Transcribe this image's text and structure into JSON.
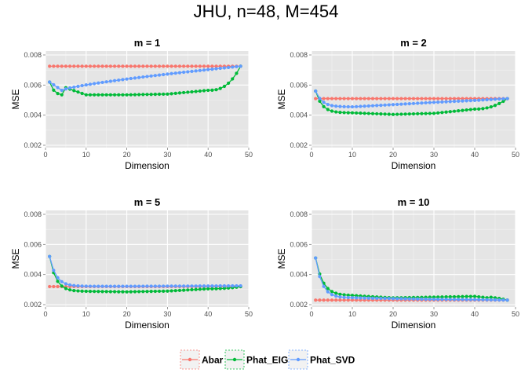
{
  "title": "JHU, n=48, M=454",
  "colors": {
    "Abar": "#F8766D",
    "Phat_EIG": "#00BA38",
    "Phat_SVD": "#619CFF",
    "panel_bg": "#e5e5e5",
    "grid": "#ffffff"
  },
  "legend": {
    "position": "bottom",
    "items": [
      "Abar",
      "Phat_EIG",
      "Phat_SVD"
    ]
  },
  "chart_data": [
    {
      "type": "line",
      "title": "m = 1",
      "xlabel": "Dimension",
      "ylabel": "MSE",
      "xlim": [
        0,
        50
      ],
      "ylim": [
        0.002,
        0.008
      ],
      "xticks": [
        "0",
        "10",
        "20",
        "30",
        "40",
        "50"
      ],
      "yticks": [
        "0.002",
        "0.004",
        "0.006",
        "0.008"
      ],
      "grid": true,
      "x": [
        1,
        10,
        20,
        30,
        40,
        48
      ],
      "series": [
        {
          "name": "Abar",
          "shape": "constant",
          "values": [
            0.00725,
            0.00725,
            0.00725,
            0.00725,
            0.00725,
            0.00725
          ]
        },
        {
          "name": "Phat_EIG",
          "shape": "eig1",
          "values": [
            0.0062,
            0.00535,
            0.00535,
            0.0054,
            0.00565,
            0.00725
          ]
        },
        {
          "name": "Phat_SVD",
          "shape": "svd1",
          "values": [
            0.0062,
            0.006,
            0.00645,
            0.00685,
            0.0071,
            0.00725
          ]
        }
      ]
    },
    {
      "type": "line",
      "title": "m = 2",
      "xlabel": "Dimension",
      "ylabel": "MSE",
      "xlim": [
        0,
        50
      ],
      "ylim": [
        0.002,
        0.008
      ],
      "xticks": [
        "0",
        "10",
        "20",
        "30",
        "40",
        "50"
      ],
      "yticks": [
        "0.002",
        "0.004",
        "0.006",
        "0.008"
      ],
      "grid": true,
      "x": [
        1,
        10,
        20,
        30,
        40,
        48
      ],
      "series": [
        {
          "name": "Abar",
          "shape": "constant",
          "values": [
            0.0051,
            0.0051,
            0.0051,
            0.0051,
            0.0051,
            0.0051
          ]
        },
        {
          "name": "Phat_EIG",
          "shape": "eig",
          "values": [
            0.0056,
            0.00415,
            0.00405,
            0.00412,
            0.0044,
            0.0051
          ]
        },
        {
          "name": "Phat_SVD",
          "shape": "svd",
          "values": [
            0.0056,
            0.00455,
            0.0047,
            0.00485,
            0.00498,
            0.0051
          ]
        }
      ]
    },
    {
      "type": "line",
      "title": "m = 5",
      "xlabel": "Dimension",
      "ylabel": "MSE",
      "xlim": [
        0,
        50
      ],
      "ylim": [
        0.002,
        0.008
      ],
      "xticks": [
        "0",
        "10",
        "20",
        "30",
        "40",
        "50"
      ],
      "yticks": [
        "0.002",
        "0.004",
        "0.006",
        "0.008"
      ],
      "grid": true,
      "x": [
        1,
        10,
        20,
        30,
        40,
        48
      ],
      "series": [
        {
          "name": "Abar",
          "shape": "constant",
          "values": [
            0.0032,
            0.0032,
            0.0032,
            0.0032,
            0.0032,
            0.0032
          ]
        },
        {
          "name": "Phat_EIG",
          "shape": "eig",
          "values": [
            0.0052,
            0.00288,
            0.00285,
            0.0029,
            0.00305,
            0.0032
          ]
        },
        {
          "name": "Phat_SVD",
          "shape": "svd",
          "values": [
            0.0052,
            0.00322,
            0.00322,
            0.00323,
            0.00324,
            0.00325
          ]
        }
      ]
    },
    {
      "type": "line",
      "title": "m = 10",
      "xlabel": "Dimension",
      "ylabel": "MSE",
      "xlim": [
        0,
        50
      ],
      "ylim": [
        0.002,
        0.008
      ],
      "xticks": [
        "0",
        "10",
        "20",
        "30",
        "40",
        "50"
      ],
      "yticks": [
        "0.002",
        "0.004",
        "0.006",
        "0.008"
      ],
      "grid": true,
      "x": [
        1,
        10,
        20,
        30,
        40,
        48
      ],
      "series": [
        {
          "name": "Abar",
          "shape": "constant",
          "values": [
            0.0023,
            0.0023,
            0.0023,
            0.0023,
            0.0023,
            0.0023
          ]
        },
        {
          "name": "Phat_EIG",
          "shape": "eig10",
          "values": [
            0.0051,
            0.0026,
            0.00245,
            0.0025,
            0.00255,
            0.0023
          ]
        },
        {
          "name": "Phat_SVD",
          "shape": "svd",
          "values": [
            0.0051,
            0.00245,
            0.0024,
            0.00235,
            0.00233,
            0.0023
          ]
        }
      ]
    }
  ]
}
